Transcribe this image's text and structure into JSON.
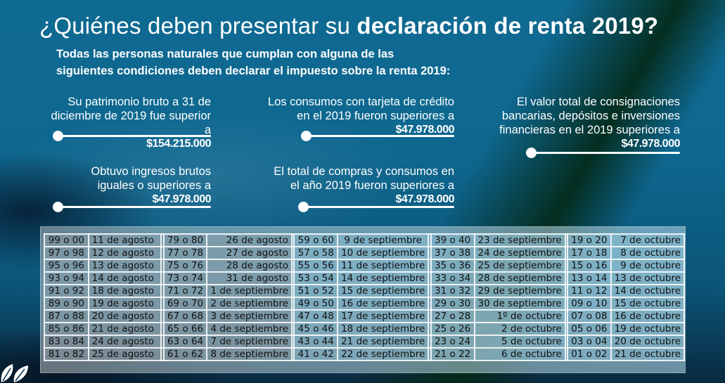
{
  "title": {
    "light": "¿Quiénes deben presentar su ",
    "bold": "declaración de renta 2019?"
  },
  "subtitle": {
    "line1": "Todas las personas naturales que cumplan con alguna de las",
    "line2": "siguientes condiciones deben declarar el impuesto sobre la renta 2019:"
  },
  "conditions": [
    {
      "lines": [
        "Su patrimonio bruto a 31 de",
        "diciembre de 2019 fue superior a"
      ],
      "amount": "$154.215.000"
    },
    {
      "lines": [
        "Los consumos con tarjeta de crédito",
        "en el 2019 fueron superiores a"
      ],
      "amount": "$47.978.000"
    },
    {
      "lines": [
        "El valor total de consignaciones",
        "bancarias, depósitos e inversiones",
        "financieras en el 2019 superiores a"
      ],
      "amount": "$47.978.000"
    },
    {
      "lines": [
        "Obtuvo ingresos brutos",
        "iguales o superiores  a"
      ],
      "amount": "$47.978.000"
    },
    {
      "lines": [
        "El total de compras y consumos en",
        "el año 2019 fueron superiores a"
      ],
      "amount": "$47.978.000"
    }
  ],
  "calendar": {
    "rows": [
      [
        "99 o 00",
        "11 de agosto",
        "79 o 80",
        "26 de agosto",
        "59 o 60",
        "9 de septiembre",
        "39 o 40",
        "23 de septiembre",
        "19 o 20",
        "7 de octubre"
      ],
      [
        "97 o 98",
        "12 de agosto",
        "77 o 78",
        "27 de agosto",
        "57 o 58",
        "10 de septiembre",
        "37 o 38",
        "24 de septiembre",
        "17 o 18",
        "8 de octubre"
      ],
      [
        "95 o 96",
        "13 de agosto",
        "75 o 76",
        "28 de agosto",
        "55 o 56",
        "11 de septiembre",
        "35 o 36",
        "25 de septiembre",
        "15 o 16",
        "9 de octubre"
      ],
      [
        "93 o 94",
        "14 de agosto",
        "73 o 74",
        "31 de agosto",
        "53 o 54",
        "14 de septiembre",
        "33 o 34",
        "28 de septiembre",
        "13 o 14",
        "13 de octubre"
      ],
      [
        "91 o 92",
        "18 de agosto",
        "71 o 72",
        "1 de septiembre",
        "51 o 52",
        "15 de septiembre",
        "31 o 32",
        "29 de septiembre",
        "11 o 12",
        "14 de octubre"
      ],
      [
        "89 o 90",
        "19 de agosto",
        "69 o 70",
        "2 de septiembre",
        "49 o 50",
        "16 de septiembre",
        "29 o 30",
        "30 de septiembre",
        "09 o 10",
        "15 de octubre"
      ],
      [
        "87 o 88",
        "20 de agosto",
        "67 o 68",
        "3 de septiembre",
        "47 o 48",
        "17 de septiembre",
        "27 o 28",
        "1º de octubre",
        "07 o 08",
        "16 de octubre"
      ],
      [
        "85 o 86",
        "21 de agosto",
        "65 o 66",
        "4 de septiembre",
        "45 o 46",
        "18 de septiembre",
        "25 o 26",
        "2 de octubre",
        "05 o 06",
        "19 de octubre"
      ],
      [
        "83 o 84",
        "24 de agosto",
        "63 o 64",
        "7 de septiembre",
        "43 o 44",
        "21 de septiembre",
        "23 o 24",
        "5 de octubre",
        "03 o 04",
        "20 de octubre"
      ],
      [
        "81 o 82",
        "25 de agosto",
        "61 o 62",
        "8 de septiembre",
        "41 o 42",
        "22 de septiembre",
        "21 o 22",
        "6 de octubre",
        "01 o 02",
        "21 de octubre"
      ]
    ]
  },
  "logo": {
    "icon": "leaves-icon"
  }
}
